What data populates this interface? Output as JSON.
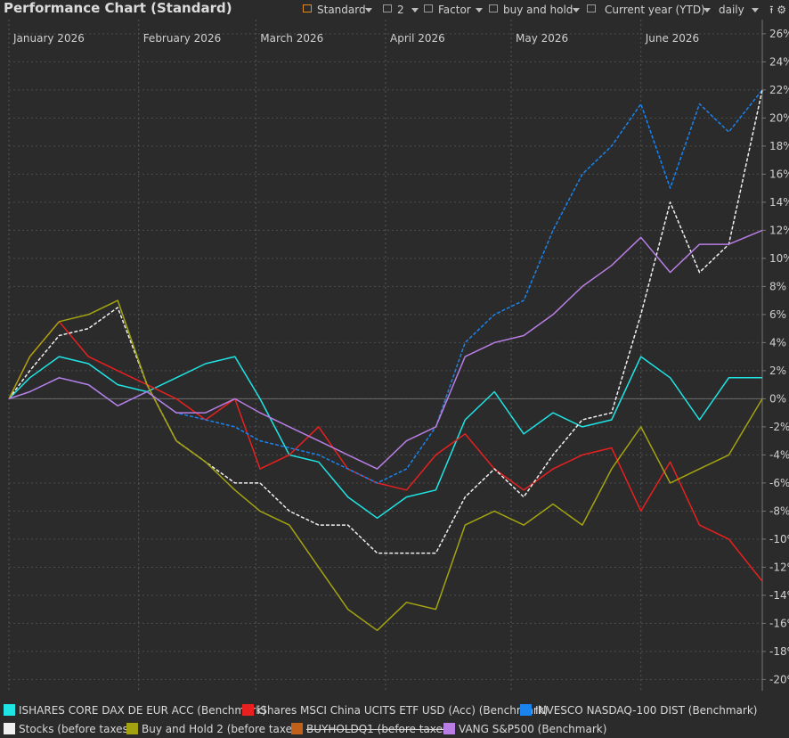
{
  "header": {
    "title": "Performance Chart (Standard)",
    "toolbar": [
      {
        "label": "Standard",
        "icon": "square-icon",
        "accent": "#e08a20"
      },
      {
        "label": "2",
        "icon": "square-icon"
      },
      {
        "label": "Factor",
        "icon": "square-icon"
      },
      {
        "label": "buy and hold",
        "icon": "square-icon"
      },
      {
        "label": "Current year (YTD)",
        "icon": "square-icon"
      },
      {
        "label": "daily",
        "icon": "none"
      }
    ],
    "tool_icons": [
      "upload-icon",
      "gear-icon"
    ]
  },
  "chart_data": {
    "type": "line",
    "title": "Performance Chart (Standard)",
    "x_labels": [
      "January 2026",
      "February 2026",
      "March 2026",
      "April 2026",
      "May 2026",
      "June 2026"
    ],
    "y_ticks": [
      26,
      24,
      22,
      20,
      18,
      16,
      14,
      12,
      10,
      8,
      6,
      4,
      2,
      0,
      -2,
      -4,
      -6,
      -8,
      -10,
      -12,
      -14,
      -16,
      -18,
      -20
    ],
    "y_unit": "%",
    "ylim": [
      -20.8,
      26.5
    ],
    "grid": true,
    "y_axis_side": "right",
    "x_range": [
      "2026-01-01",
      "2026-06-30"
    ],
    "legend_position": "bottom",
    "series": [
      {
        "name": "ISHARES CORE DAX DE EUR ACC (Benchmark)",
        "color": "#1fe5e5",
        "dashed": false,
        "x": [
          "2026-01-01",
          "2026-01-06",
          "2026-01-13",
          "2026-01-20",
          "2026-01-27",
          "2026-02-03",
          "2026-02-10",
          "2026-02-17",
          "2026-02-24",
          "2026-03-02",
          "2026-03-09",
          "2026-03-16",
          "2026-03-23",
          "2026-03-30",
          "2026-04-06",
          "2026-04-13",
          "2026-04-20",
          "2026-04-27",
          "2026-05-04",
          "2026-05-11",
          "2026-05-18",
          "2026-05-25",
          "2026-06-01",
          "2026-06-08",
          "2026-06-15",
          "2026-06-22",
          "2026-06-30"
        ],
        "y": [
          0,
          1.5,
          3,
          2.5,
          1,
          0.5,
          1.5,
          2.5,
          3,
          0,
          -4,
          -4.5,
          -7,
          -8.5,
          -7,
          -6.5,
          -1.5,
          0.5,
          -2.5,
          -1,
          -2,
          -1.5,
          3,
          1.5,
          -1.5,
          1.5,
          1.5
        ]
      },
      {
        "name": "iShares MSCI China UCITS ETF USD (Acc) (Benchmark)",
        "color": "#e82020",
        "dashed": false,
        "x": [
          "2026-01-01",
          "2026-01-06",
          "2026-01-13",
          "2026-01-20",
          "2026-01-27",
          "2026-02-03",
          "2026-02-10",
          "2026-02-17",
          "2026-02-24",
          "2026-03-02",
          "2026-03-09",
          "2026-03-16",
          "2026-03-23",
          "2026-03-30",
          "2026-04-06",
          "2026-04-13",
          "2026-04-20",
          "2026-04-27",
          "2026-05-04",
          "2026-05-11",
          "2026-05-18",
          "2026-05-25",
          "2026-06-01",
          "2026-06-08",
          "2026-06-15",
          "2026-06-22",
          "2026-06-30"
        ],
        "y": [
          0,
          3,
          5.5,
          3,
          2,
          1,
          0,
          -1.5,
          0,
          -5,
          -4,
          -2,
          -5,
          -6,
          -6.5,
          -4,
          -2.5,
          -5,
          -6.5,
          -5,
          -4,
          -3.5,
          -8,
          -4.5,
          -9,
          -10,
          -13
        ]
      },
      {
        "name": "INVESCO NASDAQ-100 DIST (Benchmark)",
        "color": "#1a84ee",
        "dashed": true,
        "x": [
          "2026-01-01",
          "2026-01-06",
          "2026-01-13",
          "2026-01-20",
          "2026-01-27",
          "2026-02-03",
          "2026-02-10",
          "2026-02-17",
          "2026-02-24",
          "2026-03-02",
          "2026-03-09",
          "2026-03-16",
          "2026-03-23",
          "2026-03-30",
          "2026-04-06",
          "2026-04-13",
          "2026-04-20",
          "2026-04-27",
          "2026-05-04",
          "2026-05-11",
          "2026-05-18",
          "2026-05-25",
          "2026-06-01",
          "2026-06-08",
          "2026-06-15",
          "2026-06-22",
          "2026-06-30"
        ],
        "y": [
          0,
          0.5,
          1.5,
          1,
          -0.5,
          0.5,
          -1,
          -1.5,
          -2,
          -3,
          -3.5,
          -4,
          -5,
          -6,
          -5,
          -2,
          4,
          6,
          7,
          12,
          16,
          18,
          21,
          15,
          21,
          19,
          22
        ]
      },
      {
        "name": "Stocks (before taxes)",
        "color": "#f0f0f0",
        "dashed": true,
        "x": [
          "2026-01-01",
          "2026-01-06",
          "2026-01-13",
          "2026-01-20",
          "2026-01-27",
          "2026-02-03",
          "2026-02-10",
          "2026-02-17",
          "2026-02-24",
          "2026-03-02",
          "2026-03-09",
          "2026-03-16",
          "2026-03-23",
          "2026-03-30",
          "2026-04-06",
          "2026-04-13",
          "2026-04-20",
          "2026-04-27",
          "2026-05-04",
          "2026-05-11",
          "2026-05-18",
          "2026-05-25",
          "2026-06-01",
          "2026-06-08",
          "2026-06-15",
          "2026-06-22",
          "2026-06-30"
        ],
        "y": [
          0,
          2,
          4.5,
          5,
          6.5,
          1,
          -3,
          -4.5,
          -6,
          -6,
          -8,
          -9,
          -9,
          -11,
          -11,
          -11,
          -7,
          -5,
          -7,
          -4,
          -1.5,
          -1,
          6,
          14,
          9,
          11,
          22
        ]
      },
      {
        "name": "Buy and Hold 2 (before taxes)",
        "color": "#a3a311",
        "dashed": false,
        "x": [
          "2026-01-01",
          "2026-01-06",
          "2026-01-13",
          "2026-01-20",
          "2026-01-27",
          "2026-02-03",
          "2026-02-10",
          "2026-02-17",
          "2026-02-24",
          "2026-03-02",
          "2026-03-09",
          "2026-03-16",
          "2026-03-23",
          "2026-03-30",
          "2026-04-06",
          "2026-04-13",
          "2026-04-20",
          "2026-04-27",
          "2026-05-04",
          "2026-05-11",
          "2026-05-18",
          "2026-05-25",
          "2026-06-01",
          "2026-06-08",
          "2026-06-15",
          "2026-06-22",
          "2026-06-30"
        ],
        "y": [
          0,
          3,
          5.5,
          6,
          7,
          1,
          -3,
          -4.5,
          -6.5,
          -8,
          -9,
          -12,
          -15,
          -16.5,
          -14.5,
          -15,
          -9,
          -8,
          -9,
          -7.5,
          -9,
          -5,
          -2,
          -6,
          -5,
          -4,
          0
        ]
      },
      {
        "name": "BUYHOLDQ1 (before taxes)",
        "color": "#c1601a",
        "strikethrough": true
      },
      {
        "name": "VANG S&P500 (Benchmark)",
        "color": "#b87ee3",
        "dashed": false,
        "x": [
          "2026-01-01",
          "2026-01-06",
          "2026-01-13",
          "2026-01-20",
          "2026-01-27",
          "2026-02-03",
          "2026-02-10",
          "2026-02-17",
          "2026-02-24",
          "2026-03-02",
          "2026-03-09",
          "2026-03-16",
          "2026-03-23",
          "2026-03-30",
          "2026-04-06",
          "2026-04-13",
          "2026-04-20",
          "2026-04-27",
          "2026-05-04",
          "2026-05-11",
          "2026-05-18",
          "2026-05-25",
          "2026-06-01",
          "2026-06-08",
          "2026-06-15",
          "2026-06-22",
          "2026-06-30"
        ],
        "y": [
          0,
          0.5,
          1.5,
          1,
          -0.5,
          0.5,
          -1,
          -1,
          0,
          -1,
          -2,
          -3,
          -4,
          -5,
          -3,
          -2,
          3,
          4,
          4.5,
          6,
          8,
          9.5,
          11.5,
          9,
          11,
          11,
          12
        ]
      }
    ]
  }
}
